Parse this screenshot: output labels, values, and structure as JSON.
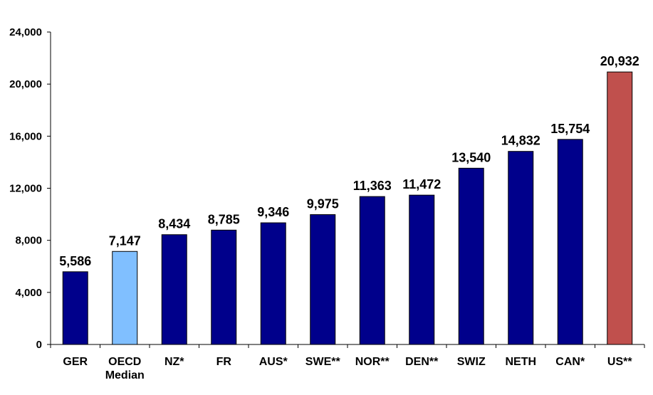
{
  "chart_data": {
    "type": "bar",
    "categories": [
      [
        "GER"
      ],
      [
        "OECD",
        "Median"
      ],
      [
        "NZ*"
      ],
      [
        "FR"
      ],
      [
        "AUS*"
      ],
      [
        "SWE**"
      ],
      [
        "NOR**"
      ],
      [
        "DEN**"
      ],
      [
        "SWIZ"
      ],
      [
        "NETH"
      ],
      [
        "CAN*"
      ],
      [
        "US**"
      ]
    ],
    "values": [
      5586,
      7147,
      8434,
      8785,
      9346,
      9975,
      11363,
      11472,
      13540,
      14832,
      15754,
      20932
    ],
    "value_labels": [
      "5,586",
      "7,147",
      "8,434",
      "8,785",
      "9,346",
      "9,975",
      "11,363",
      "11,472",
      "13,540",
      "14,832",
      "15,754",
      "20,932"
    ],
    "bar_colors": [
      "#00008b",
      "#80bfff",
      "#00008b",
      "#00008b",
      "#00008b",
      "#00008b",
      "#00008b",
      "#00008b",
      "#00008b",
      "#00008b",
      "#00008b",
      "#c0504d"
    ],
    "ylim": [
      0,
      24000
    ],
    "yticks": [
      0,
      4000,
      8000,
      12000,
      16000,
      20000,
      24000
    ],
    "ytick_labels": [
      "0",
      "4,000",
      "8,000",
      "12,000",
      "16,000",
      "20,000",
      "24,000"
    ],
    "title": "",
    "xlabel": "",
    "ylabel": "",
    "grid": false,
    "legend": "none"
  }
}
